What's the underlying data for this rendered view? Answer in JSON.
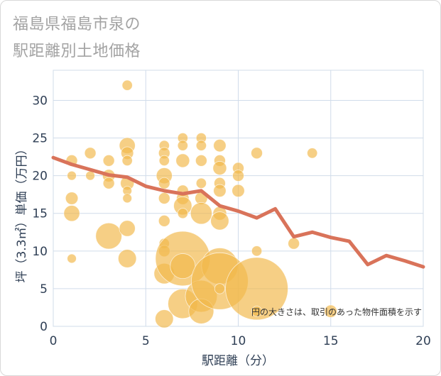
{
  "chart_data": {
    "type": "scatter",
    "title": "福島県福島市泉の\n駅距離別土地価格",
    "title_lines": [
      "福島県福島市泉の",
      "駅距離別土地価格"
    ],
    "xlabel": "駅距離（分）",
    "ylabel": "坪（3.3㎡）単価（万円）",
    "xlim": [
      0,
      20
    ],
    "ylim": [
      0,
      34
    ],
    "x_ticks": [
      "0",
      "5",
      "10",
      "15",
      "20"
    ],
    "y_ticks": [
      "0",
      "5",
      "10",
      "15",
      "20",
      "25",
      "30"
    ],
    "grid": true,
    "note": "円の大きさは、取引のあった物件面積を示す",
    "colors": {
      "bubble": "#f2b84b",
      "line": "#d9735a",
      "grid": "#d0dcea"
    },
    "series": [
      {
        "type": "bubble",
        "points": [
          {
            "x": 1,
            "y": 22,
            "s": 1
          },
          {
            "x": 1,
            "y": 20,
            "s": 0.8
          },
          {
            "x": 1,
            "y": 17,
            "s": 1.1
          },
          {
            "x": 1,
            "y": 15,
            "s": 1.4
          },
          {
            "x": 1,
            "y": 9,
            "s": 0.8
          },
          {
            "x": 2,
            "y": 23,
            "s": 1
          },
          {
            "x": 2,
            "y": 20,
            "s": 0.8
          },
          {
            "x": 3,
            "y": 22,
            "s": 1
          },
          {
            "x": 3,
            "y": 20,
            "s": 1.1
          },
          {
            "x": 3,
            "y": 19,
            "s": 1
          },
          {
            "x": 3,
            "y": 12,
            "s": 2.3
          },
          {
            "x": 4,
            "y": 32,
            "s": 0.9
          },
          {
            "x": 4,
            "y": 24,
            "s": 1.4
          },
          {
            "x": 4,
            "y": 23,
            "s": 1.1
          },
          {
            "x": 4,
            "y": 22,
            "s": 0.9
          },
          {
            "x": 4,
            "y": 19,
            "s": 1.2
          },
          {
            "x": 4,
            "y": 18,
            "s": 0.8
          },
          {
            "x": 4,
            "y": 17,
            "s": 0.8
          },
          {
            "x": 4,
            "y": 13,
            "s": 1.4
          },
          {
            "x": 4,
            "y": 9,
            "s": 1.6
          },
          {
            "x": 6,
            "y": 24,
            "s": 0.9
          },
          {
            "x": 6,
            "y": 23,
            "s": 1
          },
          {
            "x": 6,
            "y": 22,
            "s": 0.9
          },
          {
            "x": 6,
            "y": 20,
            "s": 1.4
          },
          {
            "x": 6,
            "y": 19,
            "s": 1
          },
          {
            "x": 6,
            "y": 17,
            "s": 1
          },
          {
            "x": 6,
            "y": 14,
            "s": 1
          },
          {
            "x": 6,
            "y": 11,
            "s": 0.9
          },
          {
            "x": 6,
            "y": 10,
            "s": 1
          },
          {
            "x": 6,
            "y": 7,
            "s": 1.8
          },
          {
            "x": 6,
            "y": 1,
            "s": 1.6
          },
          {
            "x": 7,
            "y": 25,
            "s": 0.9
          },
          {
            "x": 7,
            "y": 24,
            "s": 0.9
          },
          {
            "x": 7,
            "y": 22,
            "s": 1.2
          },
          {
            "x": 7,
            "y": 18,
            "s": 1
          },
          {
            "x": 7,
            "y": 17,
            "s": 1.1
          },
          {
            "x": 7,
            "y": 16,
            "s": 1.6
          },
          {
            "x": 7,
            "y": 15,
            "s": 0.9
          },
          {
            "x": 7,
            "y": 9,
            "s": 4.8
          },
          {
            "x": 7,
            "y": 8,
            "s": 2.2
          },
          {
            "x": 7,
            "y": 3,
            "s": 2.6
          },
          {
            "x": 8,
            "y": 25,
            "s": 0.9
          },
          {
            "x": 8,
            "y": 24,
            "s": 0.9
          },
          {
            "x": 8,
            "y": 22,
            "s": 1
          },
          {
            "x": 8,
            "y": 19,
            "s": 0.9
          },
          {
            "x": 8,
            "y": 17,
            "s": 1.1
          },
          {
            "x": 8,
            "y": 15,
            "s": 1.9
          },
          {
            "x": 8,
            "y": 4,
            "s": 2.8
          },
          {
            "x": 8,
            "y": 2,
            "s": 2.2
          },
          {
            "x": 9,
            "y": 24,
            "s": 1.1
          },
          {
            "x": 9,
            "y": 22,
            "s": 1
          },
          {
            "x": 9,
            "y": 21,
            "s": 1.2
          },
          {
            "x": 9,
            "y": 19,
            "s": 1
          },
          {
            "x": 9,
            "y": 18,
            "s": 1.1
          },
          {
            "x": 9,
            "y": 15,
            "s": 1.2
          },
          {
            "x": 9,
            "y": 14,
            "s": 1.6
          },
          {
            "x": 9,
            "y": 8,
            "s": 3.2
          },
          {
            "x": 9,
            "y": 6,
            "s": 5
          },
          {
            "x": 9,
            "y": 5,
            "s": 0.9
          },
          {
            "x": 10,
            "y": 21,
            "s": 1
          },
          {
            "x": 10,
            "y": 20,
            "s": 1
          },
          {
            "x": 10,
            "y": 18,
            "s": 1.1
          },
          {
            "x": 11,
            "y": 23,
            "s": 1
          },
          {
            "x": 11,
            "y": 10,
            "s": 0.9
          },
          {
            "x": 11,
            "y": 5,
            "s": 5.5
          },
          {
            "x": 11,
            "y": 2,
            "s": 0.9
          },
          {
            "x": 13,
            "y": 11,
            "s": 1
          },
          {
            "x": 14,
            "y": 23,
            "s": 0.9
          },
          {
            "x": 15,
            "y": 2,
            "s": 1.1
          }
        ]
      },
      {
        "type": "line",
        "x": [
          0,
          1,
          2,
          3,
          4,
          5,
          6,
          7,
          8,
          9,
          10,
          11,
          12,
          13,
          14,
          15,
          16,
          17,
          18,
          19,
          20
        ],
        "y": [
          22.4,
          21.5,
          20.8,
          20.1,
          19.8,
          18.6,
          18.0,
          17.6,
          18.0,
          16.0,
          15.3,
          14.4,
          15.6,
          11.9,
          12.5,
          11.8,
          11.3,
          8.2,
          9.4,
          8.7,
          7.9
        ]
      }
    ]
  }
}
